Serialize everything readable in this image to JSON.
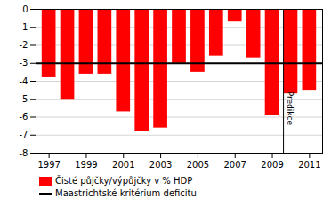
{
  "chart_data": {
    "type": "bar",
    "x": [
      1997,
      1998,
      1999,
      2000,
      2001,
      2002,
      2003,
      2004,
      2005,
      2006,
      2007,
      2008,
      2009,
      2010,
      2011
    ],
    "series": [
      {
        "name": "Čisté půjčky/výpůjčky v % HDP",
        "color": "#ff0000",
        "values": [
          -3.8,
          -5.0,
          -3.6,
          -3.6,
          -5.7,
          -6.8,
          -6.6,
          -3.0,
          -3.5,
          -2.6,
          -0.7,
          -2.7,
          -5.9,
          -4.7,
          -4.5
        ]
      }
    ],
    "xlim": [
      1996.3,
      2011.7
    ],
    "xticks": [
      1997,
      1999,
      2001,
      2003,
      2005,
      2007,
      2009,
      2011
    ],
    "ylim": [
      -8,
      0
    ],
    "yticks": [
      0,
      -1,
      -2,
      -3,
      -4,
      -5,
      -6,
      -7,
      -8
    ],
    "grid": true,
    "legend": "lower left",
    "reference_line": {
      "name": "Maastrichtské kritérium deficitu",
      "value": -3.0,
      "color": "#000000"
    },
    "annotations": [
      {
        "x": 2009.6,
        "y": -5.5,
        "label": "Predikce",
        "color": "#000000"
      }
    ]
  }
}
